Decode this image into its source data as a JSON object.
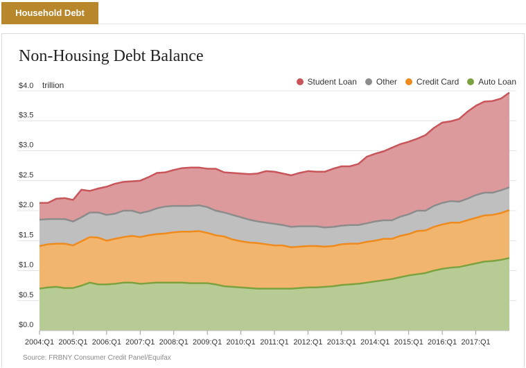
{
  "header": {
    "tab_label": "Household Debt"
  },
  "chart_data": {
    "type": "area",
    "stacked": true,
    "title": "Non-Housing Debt Balance",
    "unit_label": "trillion",
    "xlabel": "",
    "ylabel": "",
    "ylim": [
      0,
      4.0
    ],
    "yticks": [
      0.0,
      0.5,
      1.0,
      1.5,
      2.0,
      2.5,
      3.0,
      3.5,
      4.0
    ],
    "ytick_labels": [
      "$0.0",
      "$0.5",
      "$1.0",
      "$1.5",
      "$2.0",
      "$2.5",
      "$3.0",
      "$3.5",
      "$4.0"
    ],
    "x_start": "2004:Q1",
    "x_tick_labels": [
      "2004:Q1",
      "2005:Q1",
      "2006:Q1",
      "2007:Q1",
      "2008:Q1",
      "2009:Q1",
      "2010:Q1",
      "2011:Q1",
      "2012:Q1",
      "2013:Q1",
      "2014:Q1",
      "2015:Q1",
      "2016:Q1",
      "2017:Q1"
    ],
    "grid": true,
    "legend_position": "top-right",
    "series": [
      {
        "name": "Auto Loan",
        "color": "#7ba23f",
        "fill": "#b7cc95",
        "values": [
          0.7,
          0.72,
          0.73,
          0.71,
          0.71,
          0.75,
          0.8,
          0.77,
          0.77,
          0.78,
          0.8,
          0.8,
          0.78,
          0.79,
          0.8,
          0.8,
          0.8,
          0.8,
          0.79,
          0.79,
          0.79,
          0.77,
          0.74,
          0.73,
          0.72,
          0.71,
          0.7,
          0.7,
          0.7,
          0.7,
          0.7,
          0.71,
          0.72,
          0.72,
          0.73,
          0.74,
          0.76,
          0.77,
          0.78,
          0.8,
          0.82,
          0.84,
          0.86,
          0.89,
          0.92,
          0.94,
          0.96,
          1.0,
          1.03,
          1.05,
          1.06,
          1.09,
          1.12,
          1.15,
          1.16,
          1.18,
          1.21
        ]
      },
      {
        "name": "Credit Card",
        "color": "#ef8a1c",
        "fill": "#f2b56d",
        "values": [
          0.71,
          0.72,
          0.72,
          0.74,
          0.71,
          0.74,
          0.76,
          0.78,
          0.73,
          0.75,
          0.76,
          0.78,
          0.78,
          0.8,
          0.81,
          0.82,
          0.84,
          0.85,
          0.86,
          0.87,
          0.84,
          0.82,
          0.83,
          0.79,
          0.77,
          0.76,
          0.76,
          0.74,
          0.72,
          0.72,
          0.69,
          0.69,
          0.69,
          0.69,
          0.67,
          0.67,
          0.68,
          0.68,
          0.67,
          0.68,
          0.68,
          0.69,
          0.67,
          0.69,
          0.69,
          0.72,
          0.71,
          0.73,
          0.74,
          0.75,
          0.74,
          0.75,
          0.76,
          0.77,
          0.77,
          0.78,
          0.8
        ]
      },
      {
        "name": "Other",
        "color": "#8c8c8c",
        "fill": "#bfbfbf",
        "values": [
          0.44,
          0.42,
          0.41,
          0.41,
          0.4,
          0.4,
          0.41,
          0.42,
          0.43,
          0.42,
          0.44,
          0.42,
          0.4,
          0.4,
          0.43,
          0.45,
          0.44,
          0.43,
          0.43,
          0.43,
          0.43,
          0.41,
          0.4,
          0.41,
          0.4,
          0.38,
          0.36,
          0.36,
          0.36,
          0.34,
          0.34,
          0.34,
          0.33,
          0.33,
          0.32,
          0.32,
          0.31,
          0.31,
          0.31,
          0.31,
          0.32,
          0.31,
          0.31,
          0.32,
          0.33,
          0.34,
          0.33,
          0.35,
          0.36,
          0.36,
          0.35,
          0.36,
          0.38,
          0.38,
          0.37,
          0.38,
          0.38
        ]
      },
      {
        "name": "Student Loan",
        "color": "#c8555a",
        "fill": "#dc9a9c",
        "values": [
          0.28,
          0.27,
          0.34,
          0.35,
          0.36,
          0.46,
          0.36,
          0.4,
          0.47,
          0.5,
          0.48,
          0.49,
          0.54,
          0.57,
          0.59,
          0.57,
          0.6,
          0.63,
          0.64,
          0.63,
          0.64,
          0.7,
          0.67,
          0.7,
          0.73,
          0.76,
          0.8,
          0.86,
          0.87,
          0.86,
          0.86,
          0.89,
          0.92,
          0.91,
          0.93,
          0.97,
          0.99,
          0.98,
          1.02,
          1.11,
          1.13,
          1.15,
          1.21,
          1.21,
          1.21,
          1.2,
          1.26,
          1.3,
          1.34,
          1.33,
          1.38,
          1.45,
          1.49,
          1.52,
          1.53,
          1.53,
          1.58
        ]
      }
    ],
    "legend_order": [
      "Student Loan",
      "Other",
      "Credit Card",
      "Auto Loan"
    ],
    "source": "Source: FRBNY Consumer Credit Panel/Equifax"
  }
}
